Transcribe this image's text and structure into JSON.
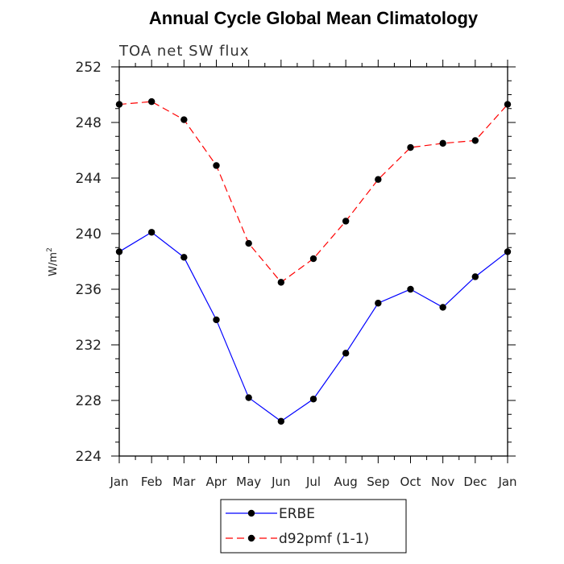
{
  "chart_data": {
    "type": "line",
    "title": "Annual Cycle Global Mean Climatology",
    "subtitle": "TOA net SW flux",
    "xlabel": "",
    "ylabel": "W/m",
    "ylabel_sup": "2",
    "categories": [
      "Jan",
      "Feb",
      "Mar",
      "Apr",
      "May",
      "Jun",
      "Jul",
      "Aug",
      "Sep",
      "Oct",
      "Nov",
      "Dec",
      "Jan"
    ],
    "ylim": [
      224,
      252
    ],
    "yticks": [
      224,
      228,
      232,
      236,
      240,
      244,
      248,
      252
    ],
    "grid": false,
    "legend_position": "bottom",
    "series": [
      {
        "name": "ERBE",
        "color": "#0000ff",
        "dash": "solid",
        "marker": "circle",
        "values": [
          238.7,
          240.1,
          238.3,
          233.8,
          228.2,
          226.5,
          228.1,
          231.4,
          235.0,
          236.0,
          234.7,
          236.9,
          238.7
        ]
      },
      {
        "name": "d92pmf (1-1)",
        "color": "#ff0000",
        "dash": "dashed",
        "marker": "circle",
        "values": [
          249.3,
          249.5,
          248.2,
          244.9,
          239.3,
          236.5,
          238.2,
          240.9,
          243.9,
          246.2,
          246.5,
          246.7,
          249.3
        ]
      }
    ]
  }
}
